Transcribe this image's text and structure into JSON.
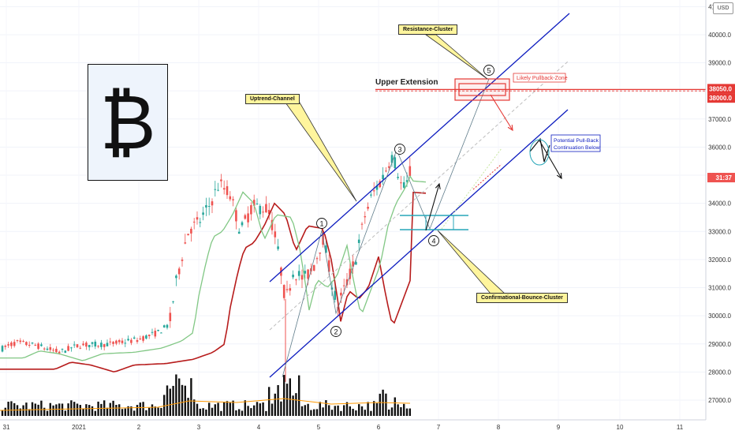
{
  "currency": "USD",
  "logo_symbol": "₿",
  "chart_data": {
    "type": "candlestick",
    "y_axis_ticks": [
      27000,
      28000,
      29000,
      30000,
      31000,
      32000,
      33000,
      34000,
      35000,
      36000,
      37000,
      38000,
      39000,
      40000,
      41000
    ],
    "y_axis_tick_labels": [
      "27000.0",
      "28000.0",
      "29000.0",
      "30000.0",
      "31000.0",
      "32000.0",
      "33000.0",
      "34000.0",
      "35000.0",
      "36000.0",
      "37000.0",
      "38000.0",
      "39000.0",
      "40000.0",
      "41000.0"
    ],
    "ylim": [
      26500,
      41300
    ],
    "x_axis_labels": [
      "31",
      "2021",
      "2",
      "3",
      "4",
      "5",
      "6",
      "7",
      "8",
      "9",
      "10",
      "11"
    ],
    "price_labels": {
      "upper": "38050.0",
      "lower": "38000.0",
      "current_time": "31:37"
    },
    "waves": [
      "1",
      "2",
      "3",
      "4",
      "5"
    ],
    "annotations": {
      "resistance_cluster": "Resistance-Cluster",
      "uptrend_channel": "Uptrend-Channel",
      "upper_extension": "Upper Extension",
      "likely_pullback_zone": "Likely Pullback-Zone",
      "potential_pullback_line1": "Potential Pull-Back",
      "potential_pullback_line2": "Continuation Below",
      "confirmational_bounce": "Confirmational-Bounce-Cluster"
    },
    "colors": {
      "bull": "#26a69a",
      "bear": "#ef5350",
      "channel": "#0d1cbf",
      "ma_slow": "#b71c1c",
      "ma_fast": "#81c784",
      "extension": "#e53935",
      "volume": "#111111"
    }
  }
}
